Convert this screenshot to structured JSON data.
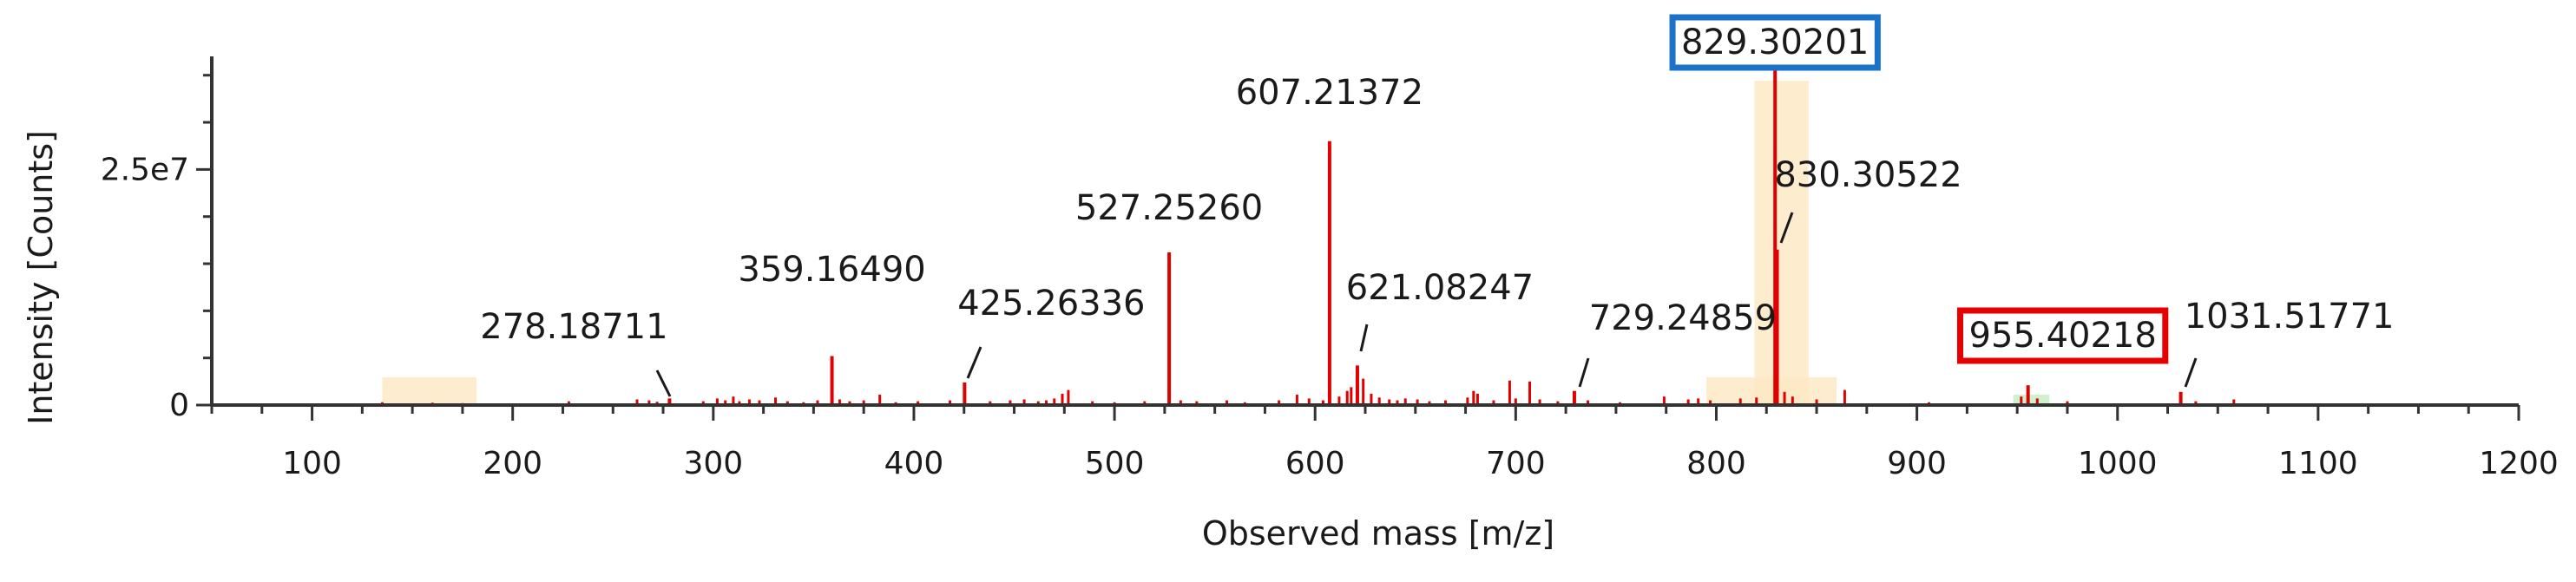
{
  "chart_data": {
    "type": "bar",
    "title": "",
    "xlabel": "Observed mass [m/z]",
    "ylabel": "Intensity [Counts]",
    "xlim": [
      50,
      1200
    ],
    "ylim": [
      0,
      37000000.0
    ],
    "x_ticks": [
      100,
      200,
      300,
      400,
      500,
      600,
      700,
      800,
      900,
      1000,
      1100,
      1200
    ],
    "x_tick_labels": [
      "100",
      "200",
      "300",
      "400",
      "500",
      "600",
      "700",
      "800",
      "900",
      "1000",
      "1100",
      "1200"
    ],
    "y_ticks": [
      0,
      25000000
    ],
    "y_tick_labels": [
      "0",
      "2.5e7"
    ],
    "grid": false,
    "series_color": "#e00000",
    "highlight_color": "#fde9c4",
    "green_highlight_color": "#c9f0c9",
    "highlight_regions": [
      {
        "x0": 135,
        "x1": 182
      },
      {
        "x0": 795,
        "x1": 860
      },
      {
        "x0": 819,
        "x1": 846
      }
    ],
    "green_regions": [
      {
        "x0": 948,
        "x1": 966
      }
    ],
    "labeled_peaks": [
      {
        "x": 278.18711,
        "y": 700000,
        "label": "278.18711"
      },
      {
        "x": 359.1649,
        "y": 5200000,
        "label": "359.16490"
      },
      {
        "x": 425.26336,
        "y": 2400000,
        "label": "425.26336"
      },
      {
        "x": 527.2526,
        "y": 16200000,
        "label": "527.25260"
      },
      {
        "x": 607.21372,
        "y": 28000000,
        "label": "607.21372"
      },
      {
        "x": 621.08247,
        "y": 4200000,
        "label": "621.08247"
      },
      {
        "x": 729.24859,
        "y": 1500000,
        "label": "729.24859"
      },
      {
        "x": 829.30201,
        "y": 36000000,
        "label": "829.30201",
        "box_color": "#1a73c8"
      },
      {
        "x": 830.30522,
        "y": 16500000,
        "label": "830.30522"
      },
      {
        "x": 955.40218,
        "y": 2100000,
        "label": "955.40218",
        "box_color": "#e60000"
      },
      {
        "x": 1031.51771,
        "y": 1400000,
        "label": "1031.51771"
      }
    ],
    "minor_peaks": [
      [
        135,
        300000
      ],
      [
        160,
        250000
      ],
      [
        175,
        200000
      ],
      [
        228,
        400000
      ],
      [
        262,
        600000
      ],
      [
        268,
        500000
      ],
      [
        272,
        350000
      ],
      [
        295,
        400000
      ],
      [
        302,
        700000
      ],
      [
        306,
        500000
      ],
      [
        310,
        900000
      ],
      [
        313,
        400000
      ],
      [
        318,
        600000
      ],
      [
        323,
        500000
      ],
      [
        331,
        800000
      ],
      [
        337,
        400000
      ],
      [
        345,
        300000
      ],
      [
        352,
        500000
      ],
      [
        363,
        600000
      ],
      [
        368,
        400000
      ],
      [
        375,
        500000
      ],
      [
        383,
        1100000
      ],
      [
        391,
        300000
      ],
      [
        402,
        400000
      ],
      [
        418,
        500000
      ],
      [
        438,
        400000
      ],
      [
        448,
        500000
      ],
      [
        455,
        600000
      ],
      [
        462,
        400000
      ],
      [
        466,
        500000
      ],
      [
        470,
        700000
      ],
      [
        474,
        1200000
      ],
      [
        477,
        1600000
      ],
      [
        489,
        400000
      ],
      [
        500,
        300000
      ],
      [
        515,
        400000
      ],
      [
        533,
        500000
      ],
      [
        541,
        400000
      ],
      [
        556,
        500000
      ],
      [
        565,
        300000
      ],
      [
        582,
        500000
      ],
      [
        591,
        1100000
      ],
      [
        597,
        700000
      ],
      [
        604,
        500000
      ],
      [
        612,
        900000
      ],
      [
        616,
        1500000
      ],
      [
        618,
        1900000
      ],
      [
        624,
        2800000
      ],
      [
        628,
        1200000
      ],
      [
        632,
        800000
      ],
      [
        637,
        600000
      ],
      [
        641,
        500000
      ],
      [
        645,
        700000
      ],
      [
        651,
        600000
      ],
      [
        657,
        400000
      ],
      [
        665,
        500000
      ],
      [
        676,
        800000
      ],
      [
        679,
        1500000
      ],
      [
        681,
        1200000
      ],
      [
        689,
        500000
      ],
      [
        697,
        2600000
      ],
      [
        700,
        700000
      ],
      [
        707,
        2500000
      ],
      [
        712,
        600000
      ],
      [
        721,
        400000
      ],
      [
        736,
        500000
      ],
      [
        752,
        300000
      ],
      [
        774,
        900000
      ],
      [
        786,
        600000
      ],
      [
        791,
        700000
      ],
      [
        797,
        500000
      ],
      [
        812,
        700000
      ],
      [
        820,
        800000
      ],
      [
        834,
        1400000
      ],
      [
        838,
        900000
      ],
      [
        850,
        600000
      ],
      [
        864,
        1600000
      ],
      [
        906,
        300000
      ],
      [
        952,
        900000
      ],
      [
        960,
        700000
      ],
      [
        975,
        400000
      ],
      [
        1039,
        400000
      ],
      [
        1058,
        600000
      ]
    ]
  }
}
